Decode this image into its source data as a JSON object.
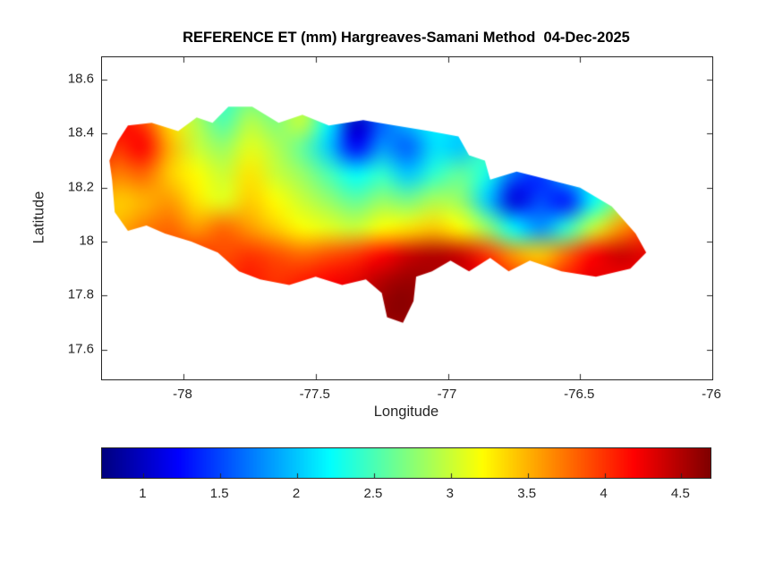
{
  "figure": {
    "background": "#ffffff"
  },
  "colors": {
    "axis": "#262626",
    "title": "#000000",
    "colormap_name": "jet"
  },
  "chart_data": {
    "type": "heatmap",
    "title": "REFERENCE ET (mm) Hargreaves-Samani Method  04-Dec-2025",
    "xlabel": "Longitude",
    "ylabel": "Latitude",
    "xlim": [
      -78.308,
      -76.0
    ],
    "ylim": [
      17.49,
      18.683
    ],
    "xticks": [
      -78,
      -77.5,
      -77,
      -76.5,
      -76
    ],
    "xtick_labels": [
      "-78",
      "-77.5",
      "-77",
      "-76.5",
      "-76"
    ],
    "yticks": [
      17.6,
      17.8,
      18.0,
      18.2,
      18.4,
      18.6
    ],
    "ytick_labels": [
      "17.6",
      "17.8",
      "18",
      "18.2",
      "18.4",
      "18.6"
    ],
    "colormap": "jet",
    "clim": [
      0.73,
      4.69
    ],
    "colorbar_ticks": [
      1,
      1.5,
      2,
      2.5,
      3,
      3.5,
      4,
      4.5
    ],
    "colorbar_tick_labels": [
      "1",
      "1.5",
      "2",
      "2.5",
      "3",
      "3.5",
      "4",
      "4.5"
    ],
    "legend_position": "horizontal-bottom",
    "grid_on": false,
    "region": "Jamaica",
    "grid": {
      "lon": [
        -78.35,
        -78.25,
        -78.15,
        -78.05,
        -77.95,
        -77.85,
        -77.75,
        -77.65,
        -77.55,
        -77.45,
        -77.35,
        -77.25,
        -77.15,
        -77.05,
        -76.95,
        -76.85,
        -76.75,
        -76.65,
        -76.55,
        -76.45,
        -76.35,
        -76.25
      ],
      "lat": [
        18.55,
        18.45,
        18.35,
        18.25,
        18.15,
        18.05,
        17.95,
        17.85,
        17.75,
        17.65
      ],
      "values": [
        [
          3.5,
          3.6,
          3.2,
          2.8,
          2.6,
          2.4,
          2.6,
          2.5,
          2.8,
          2.4,
          2.2,
          2.3,
          2.4,
          2.3,
          2.5,
          2.6,
          2.4,
          2.6,
          2.8,
          2.7,
          2.8,
          2.9
        ],
        [
          4.1,
          4.2,
          3.9,
          3.3,
          2.9,
          2.5,
          2.9,
          2.7,
          3.0,
          2.2,
          1.0,
          1.6,
          2.0,
          2.2,
          2.1,
          2.4,
          2.3,
          2.5,
          2.6,
          2.5,
          2.7,
          2.8
        ],
        [
          4.3,
          4.0,
          4.2,
          3.5,
          3.0,
          2.8,
          3.1,
          2.9,
          2.6,
          2.0,
          1.2,
          1.8,
          1.6,
          2.1,
          2.0,
          2.5,
          2.2,
          2.4,
          2.3,
          2.6,
          2.5,
          2.7
        ],
        [
          3.9,
          3.7,
          3.8,
          3.4,
          3.2,
          3.0,
          3.3,
          3.0,
          2.8,
          2.5,
          2.2,
          2.4,
          2.0,
          2.4,
          2.6,
          2.3,
          1.6,
          1.4,
          2.0,
          2.4,
          2.2,
          2.6
        ],
        [
          3.6,
          3.4,
          3.5,
          3.6,
          3.3,
          3.1,
          3.4,
          3.2,
          3.0,
          2.8,
          2.6,
          2.8,
          2.7,
          2.9,
          2.8,
          2.0,
          1.1,
          1.5,
          1.3,
          2.2,
          2.8,
          3.2
        ],
        [
          3.4,
          3.5,
          3.7,
          3.8,
          3.6,
          3.8,
          3.6,
          3.4,
          3.2,
          3.1,
          3.0,
          3.2,
          3.3,
          3.4,
          3.2,
          2.8,
          2.2,
          1.8,
          2.4,
          3.0,
          3.6,
          3.9
        ],
        [
          3.6,
          3.7,
          3.8,
          3.9,
          4.0,
          3.9,
          4.0,
          3.9,
          3.8,
          3.9,
          4.0,
          4.2,
          4.4,
          4.5,
          4.4,
          4.0,
          3.6,
          3.4,
          3.8,
          4.2,
          4.4,
          4.3
        ],
        [
          3.7,
          3.8,
          3.9,
          4.0,
          4.1,
          4.0,
          4.1,
          4.0,
          4.1,
          4.2,
          4.3,
          4.5,
          4.6,
          4.5,
          4.4,
          4.2,
          4.0,
          3.9,
          4.1,
          4.3,
          4.2,
          4.1
        ],
        [
          4.0,
          4.0,
          4.0,
          4.1,
          4.1,
          4.1,
          4.1,
          4.1,
          4.2,
          4.2,
          4.3,
          4.6,
          4.65,
          4.4,
          4.3,
          4.2,
          4.1,
          4.0,
          4.0,
          4.1,
          4.0,
          4.0
        ],
        [
          3.9,
          3.9,
          4.0,
          4.0,
          4.0,
          4.0,
          4.0,
          4.0,
          4.1,
          4.1,
          4.2,
          4.5,
          4.5,
          4.3,
          4.2,
          4.1,
          4.0,
          4.0,
          4.0,
          4.0,
          3.9,
          3.9
        ]
      ]
    },
    "outline": [
      [
        -78.27,
        18.23
      ],
      [
        -78.28,
        18.3
      ],
      [
        -78.25,
        18.37
      ],
      [
        -78.21,
        18.43
      ],
      [
        -78.12,
        18.44
      ],
      [
        -78.02,
        18.41
      ],
      [
        -77.95,
        18.46
      ],
      [
        -77.89,
        18.44
      ],
      [
        -77.83,
        18.5
      ],
      [
        -77.74,
        18.5
      ],
      [
        -77.64,
        18.44
      ],
      [
        -77.55,
        18.47
      ],
      [
        -77.45,
        18.43
      ],
      [
        -77.32,
        18.45
      ],
      [
        -77.2,
        18.43
      ],
      [
        -77.07,
        18.41
      ],
      [
        -76.96,
        18.39
      ],
      [
        -76.92,
        18.32
      ],
      [
        -76.86,
        18.3
      ],
      [
        -76.84,
        18.23
      ],
      [
        -76.74,
        18.26
      ],
      [
        -76.62,
        18.23
      ],
      [
        -76.5,
        18.2
      ],
      [
        -76.38,
        18.13
      ],
      [
        -76.29,
        18.03
      ],
      [
        -76.25,
        17.96
      ],
      [
        -76.31,
        17.9
      ],
      [
        -76.44,
        17.87
      ],
      [
        -76.57,
        17.89
      ],
      [
        -76.69,
        17.93
      ],
      [
        -76.77,
        17.89
      ],
      [
        -76.84,
        17.94
      ],
      [
        -76.92,
        17.89
      ],
      [
        -76.99,
        17.93
      ],
      [
        -77.06,
        17.89
      ],
      [
        -77.12,
        17.87
      ],
      [
        -77.13,
        17.78
      ],
      [
        -77.17,
        17.7
      ],
      [
        -77.23,
        17.72
      ],
      [
        -77.25,
        17.81
      ],
      [
        -77.31,
        17.86
      ],
      [
        -77.4,
        17.84
      ],
      [
        -77.5,
        17.87
      ],
      [
        -77.6,
        17.84
      ],
      [
        -77.71,
        17.86
      ],
      [
        -77.79,
        17.89
      ],
      [
        -77.87,
        17.96
      ],
      [
        -77.97,
        18.0
      ],
      [
        -78.07,
        18.03
      ],
      [
        -78.14,
        18.06
      ],
      [
        -78.21,
        18.04
      ],
      [
        -78.26,
        18.11
      ]
    ]
  }
}
